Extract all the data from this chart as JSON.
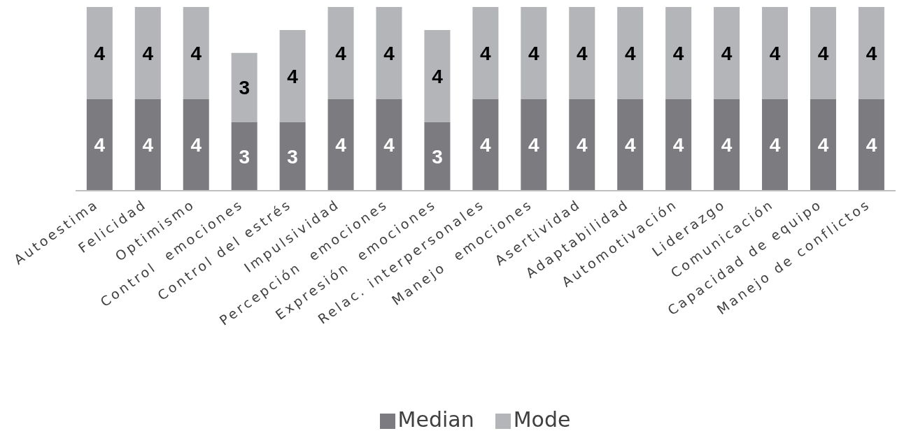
{
  "chart_data": {
    "type": "bar",
    "stacked": true,
    "data_labels": true,
    "legend": "bottom",
    "grid": false,
    "categories": [
      "Autoestima",
      "Felicidad",
      "Optimismo",
      "Control  emociones",
      "Control del estrés",
      "Impulsividad",
      "Percepción  emociones",
      "Expresión  emociones",
      "Relac. interpersonales",
      "Manejo  emociones",
      "Asertividad",
      "Adaptabilidad",
      "Automotivación",
      "Liderazgo",
      "Comunicación",
      "Capacidad de equipo",
      "Manejo de conflictos"
    ],
    "series": [
      {
        "name": "Median",
        "color": "#7b7b80",
        "values": [
          4,
          4,
          4,
          3,
          3,
          4,
          4,
          3,
          4,
          4,
          4,
          4,
          4,
          4,
          4,
          4,
          4
        ]
      },
      {
        "name": "Mode",
        "color": "#b4b5b8",
        "values": [
          4,
          4,
          4,
          3,
          4,
          4,
          4,
          4,
          4,
          4,
          4,
          4,
          4,
          4,
          4,
          4,
          4
        ]
      }
    ]
  }
}
